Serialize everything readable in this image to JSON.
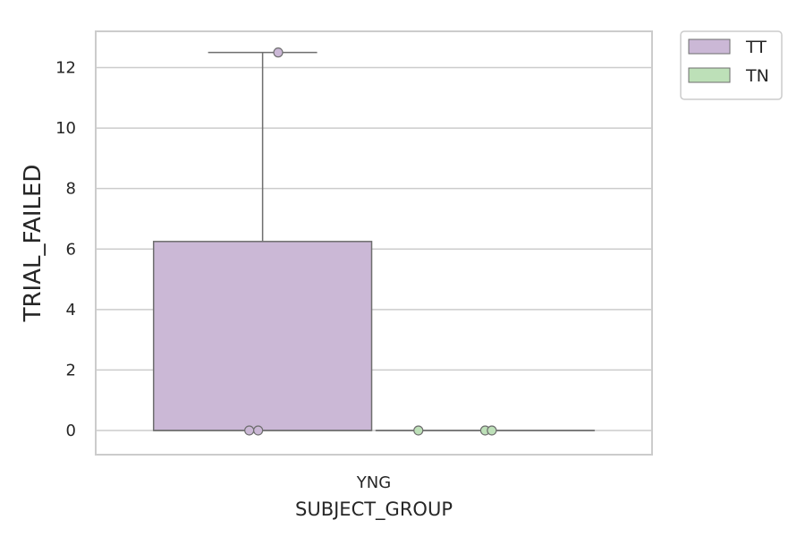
{
  "chart_data": {
    "type": "box",
    "xlabel": "SUBJECT_GROUP",
    "ylabel": "TRIAL_FAILED",
    "categories": [
      "YNG"
    ],
    "ylim": [
      -0.8,
      13.2
    ],
    "yticks": [
      0,
      2,
      4,
      6,
      8,
      10,
      12
    ],
    "grid": true,
    "legend": {
      "placement": "outside-top-right",
      "entries": [
        "TT",
        "TN"
      ]
    },
    "series": [
      {
        "name": "TT",
        "color": "#cbb8d6",
        "box": {
          "min": 0,
          "q1": 0,
          "median": 0,
          "q3": 6.25,
          "max": 12.5
        },
        "points": [
          0,
          0,
          12.5
        ]
      },
      {
        "name": "TN",
        "color": "#bde0b8",
        "box": {
          "min": 0,
          "q1": 0,
          "median": 0,
          "q3": 0,
          "max": 0
        },
        "points": [
          0,
          0,
          0
        ]
      }
    ]
  }
}
